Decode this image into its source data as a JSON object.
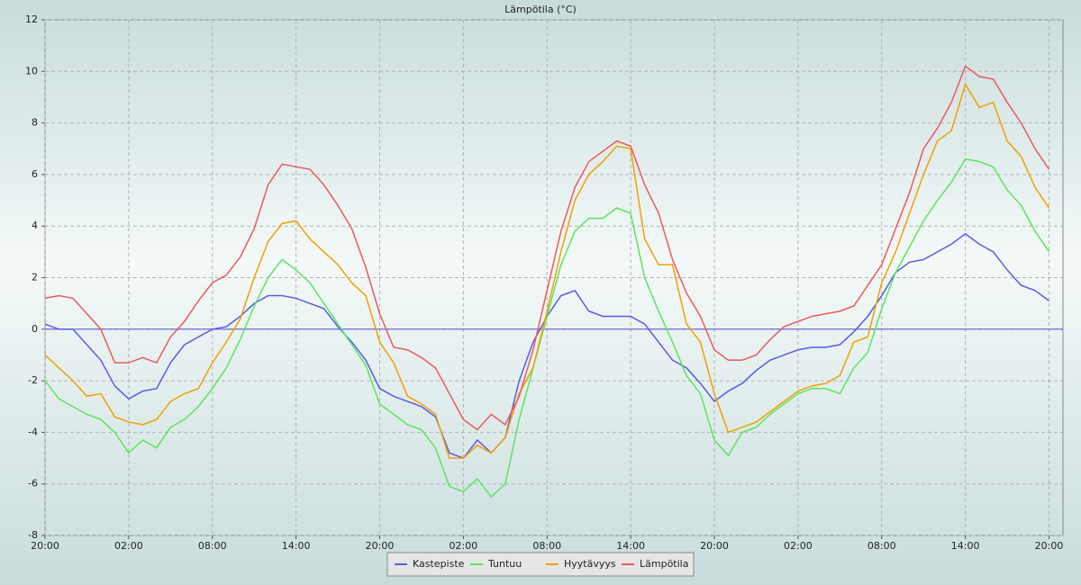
{
  "chart_data": {
    "type": "line",
    "title": "Lämpötila (°C)",
    "x": [
      0,
      1,
      2,
      3,
      4,
      5,
      6,
      7,
      8,
      9,
      10,
      11,
      12,
      13,
      14,
      15,
      16,
      17,
      18,
      19,
      20,
      21,
      22,
      23,
      24,
      25,
      26,
      27,
      28,
      29,
      30,
      31,
      32,
      33,
      34,
      35,
      36,
      37,
      38,
      39,
      40,
      41,
      42,
      43,
      44,
      45,
      46,
      47,
      48,
      49,
      50,
      51,
      52,
      53,
      54,
      55,
      56,
      57,
      58,
      59,
      60,
      61,
      62,
      63,
      64,
      65,
      66,
      67,
      68,
      69,
      70,
      71,
      72
    ],
    "series": [
      {
        "name": "Kastepiste",
        "color": "#5a5ae6",
        "values": [
          0.2,
          0.0,
          0.0,
          -0.6,
          -1.2,
          -2.2,
          -2.7,
          -2.4,
          -2.3,
          -1.3,
          -0.6,
          -0.3,
          0.0,
          0.1,
          0.5,
          1.0,
          1.3,
          1.3,
          1.2,
          1.0,
          0.8,
          0.1,
          -0.5,
          -1.2,
          -2.3,
          -2.6,
          -2.8,
          -3.0,
          -3.4,
          -4.8,
          -5.0,
          -4.3,
          -4.8,
          -4.2,
          -2.0,
          -0.5,
          0.5,
          1.3,
          1.5,
          0.7,
          0.5,
          0.5,
          0.5,
          0.2,
          -0.5,
          -1.2,
          -1.5,
          -2.1,
          -2.8,
          -2.4,
          -2.1,
          -1.6,
          -1.2,
          -1.0,
          -0.8,
          -0.7,
          -0.7,
          -0.6,
          -0.1,
          0.5,
          1.3,
          2.2,
          2.6,
          2.7,
          3.0,
          3.3,
          3.7,
          3.3,
          3.0,
          2.3,
          1.7,
          1.5,
          1.1
        ]
      },
      {
        "name": "Tuntuu",
        "color": "#5ae65a",
        "values": [
          -2.0,
          -2.7,
          -3.0,
          -3.3,
          -3.5,
          -4.0,
          -4.8,
          -4.3,
          -4.6,
          -3.8,
          -3.5,
          -3.0,
          -2.3,
          -1.5,
          -0.4,
          0.9,
          2.0,
          2.7,
          2.3,
          1.8,
          1.0,
          0.2,
          -0.6,
          -1.4,
          -2.9,
          -3.3,
          -3.7,
          -3.9,
          -4.6,
          -6.1,
          -6.3,
          -5.8,
          -6.5,
          -6.0,
          -3.5,
          -1.5,
          0.5,
          2.5,
          3.8,
          4.3,
          4.3,
          4.7,
          4.5,
          2.0,
          0.7,
          -0.5,
          -1.8,
          -2.5,
          -4.3,
          -4.9,
          -4.0,
          -3.8,
          -3.3,
          -2.9,
          -2.5,
          -2.3,
          -2.3,
          -2.5,
          -1.5,
          -0.9,
          0.8,
          2.2,
          3.2,
          4.2,
          5.0,
          5.7,
          6.6,
          6.5,
          6.3,
          5.4,
          4.8,
          3.8,
          3.0
        ]
      },
      {
        "name": "Hyytävyys",
        "color": "#f0a000",
        "values": [
          -1.0,
          -1.5,
          -2.0,
          -2.6,
          -2.5,
          -3.4,
          -3.6,
          -3.7,
          -3.5,
          -2.8,
          -2.5,
          -2.3,
          -1.3,
          -0.5,
          0.4,
          2.0,
          3.4,
          4.1,
          4.2,
          3.5,
          3.0,
          2.5,
          1.8,
          1.3,
          -0.5,
          -1.3,
          -2.6,
          -2.9,
          -3.3,
          -5.0,
          -5.0,
          -4.5,
          -4.8,
          -4.2,
          -2.5,
          -1.5,
          0.7,
          3.0,
          5.0,
          6.0,
          6.5,
          7.1,
          7.0,
          3.5,
          2.5,
          2.5,
          0.2,
          -0.5,
          -2.5,
          -4.0,
          -3.8,
          -3.6,
          -3.2,
          -2.8,
          -2.4,
          -2.2,
          -2.1,
          -1.8,
          -0.5,
          -0.3,
          1.8,
          3.0,
          4.5,
          6.0,
          7.3,
          7.7,
          9.5,
          8.6,
          8.8,
          7.3,
          6.7,
          5.5,
          4.7
        ]
      },
      {
        "name": "Lämpötila",
        "color": "#eb5a5a",
        "values": [
          1.2,
          1.3,
          1.2,
          0.6,
          0.0,
          -1.3,
          -1.3,
          -1.1,
          -1.3,
          -0.3,
          0.3,
          1.1,
          1.8,
          2.1,
          2.8,
          3.9,
          5.6,
          6.4,
          6.3,
          6.2,
          5.6,
          4.8,
          3.9,
          2.4,
          0.6,
          -0.7,
          -0.8,
          -1.1,
          -1.5,
          -2.5,
          -3.5,
          -3.9,
          -3.3,
          -3.7,
          -2.6,
          -0.8,
          1.5,
          3.8,
          5.5,
          6.5,
          6.9,
          7.3,
          7.1,
          5.6,
          4.5,
          2.7,
          1.4,
          0.5,
          -0.8,
          -1.2,
          -1.2,
          -1.0,
          -0.4,
          0.1,
          0.3,
          0.5,
          0.6,
          0.7,
          0.9,
          1.7,
          2.5,
          3.9,
          5.3,
          7.0,
          7.8,
          8.8,
          10.2,
          9.8,
          9.7,
          8.8,
          8.0,
          7.0,
          6.2
        ]
      }
    ],
    "xlim": [
      0,
      73
    ],
    "xticks": [
      {
        "value": 0,
        "label": "20:00"
      },
      {
        "value": 6,
        "label": "02:00"
      },
      {
        "value": 12,
        "label": "08:00"
      },
      {
        "value": 18,
        "label": "14:00"
      },
      {
        "value": 24,
        "label": "20:00"
      },
      {
        "value": 30,
        "label": "02:00"
      },
      {
        "value": 36,
        "label": "08:00"
      },
      {
        "value": 42,
        "label": "14:00"
      },
      {
        "value": 48,
        "label": "20:00"
      },
      {
        "value": 54,
        "label": "02:00"
      },
      {
        "value": 60,
        "label": "08:00"
      },
      {
        "value": 66,
        "label": "14:00"
      },
      {
        "value": 72,
        "label": "20:00"
      }
    ],
    "ylim": [
      -8,
      12
    ],
    "yticks": [
      -8,
      -6,
      -4,
      -2,
      0,
      2,
      4,
      6,
      8,
      10,
      12
    ],
    "grid": true,
    "legend": "bottom"
  }
}
